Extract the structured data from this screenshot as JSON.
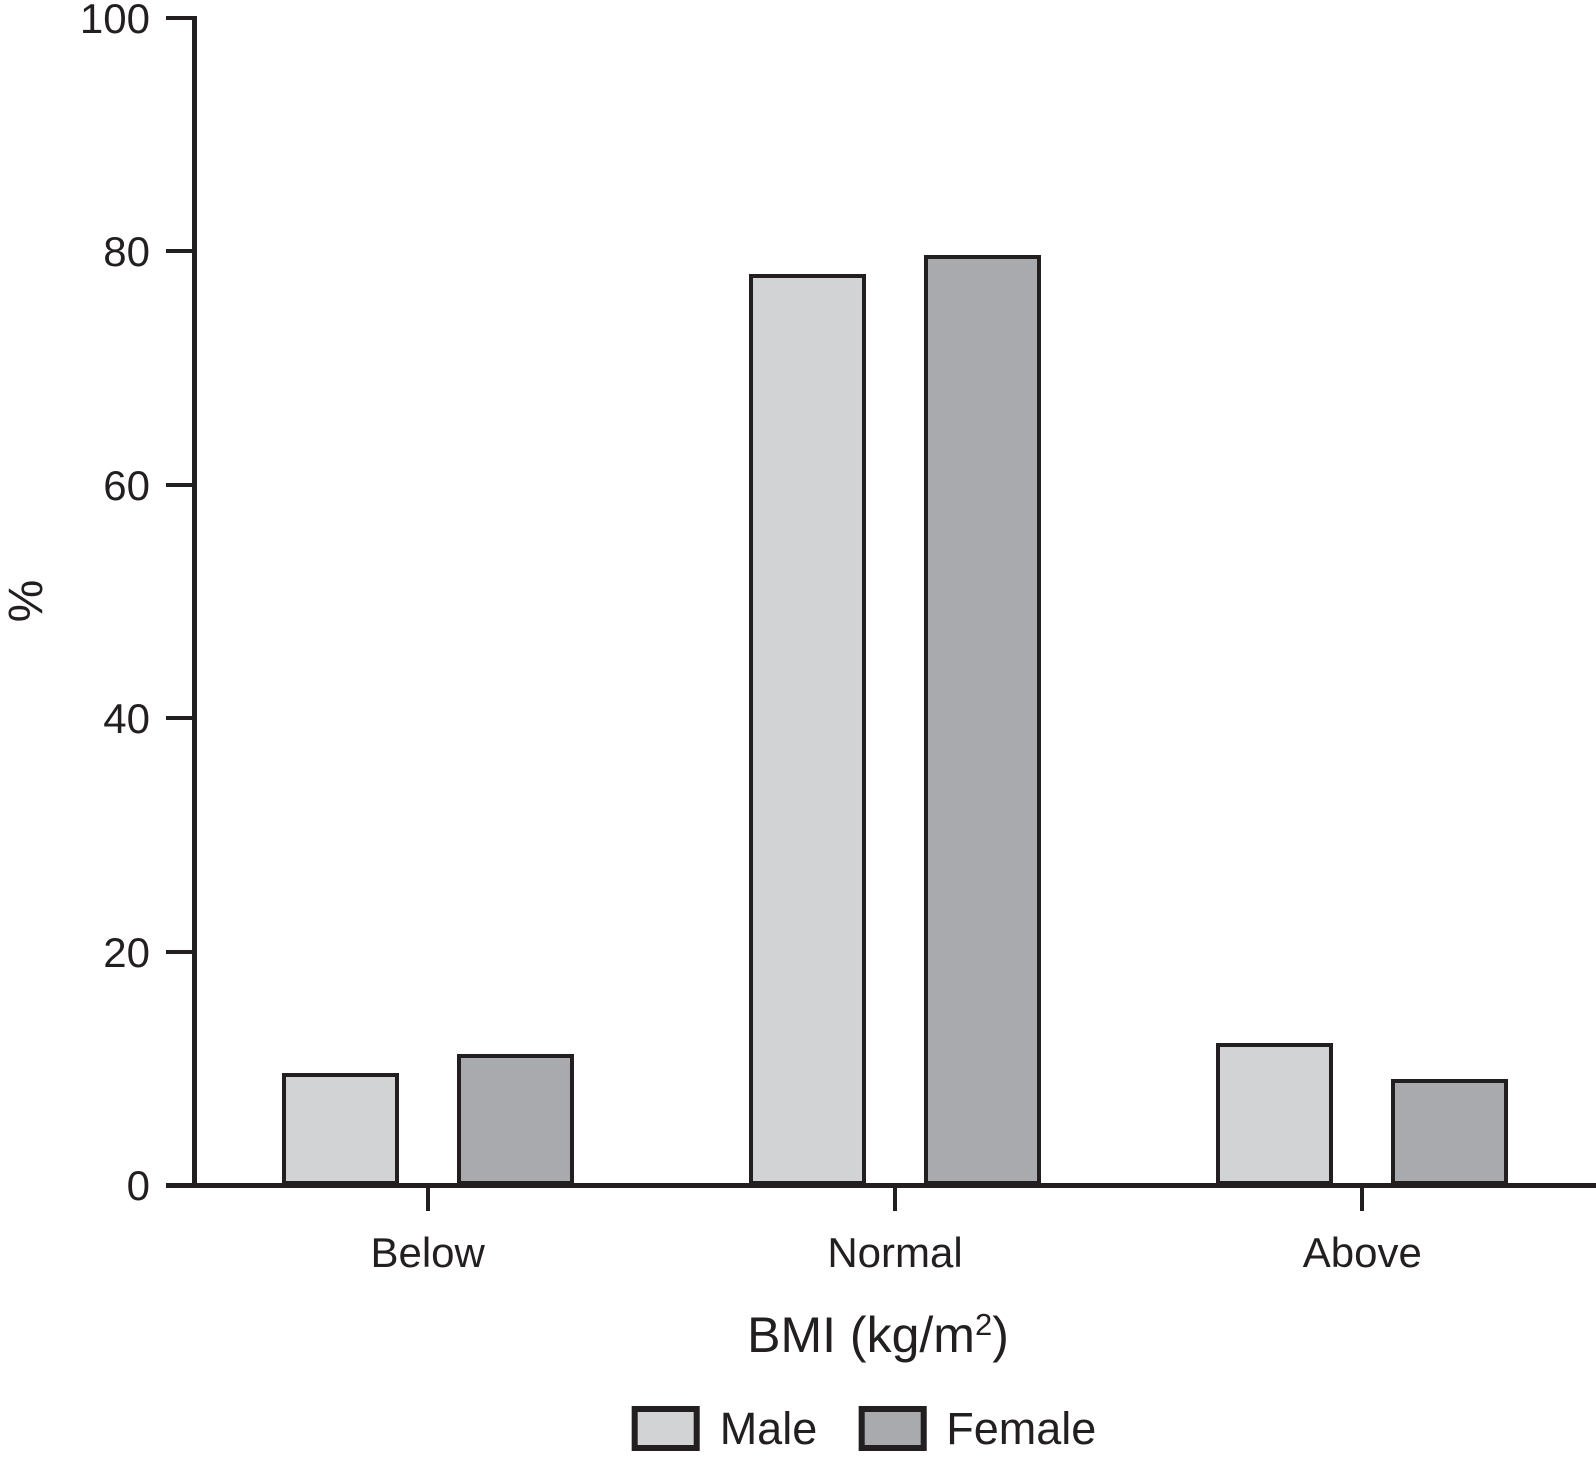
{
  "chart_data": {
    "type": "bar",
    "title": "",
    "categories": [
      "Below",
      "Normal",
      "Above"
    ],
    "series": [
      {
        "name": "Male",
        "color": "#d1d3d4",
        "values": [
          9.6,
          78.1,
          12.2
        ]
      },
      {
        "name": "Female",
        "color": "#a8aaad",
        "values": [
          11.2,
          79.7,
          9.1
        ]
      }
    ],
    "ylabel": "%",
    "xlabel": "BMI (kg/m2)",
    "xlabel_parts": {
      "base": "BMI (kg/m",
      "superscript": "2",
      "suffix": ")"
    },
    "ylim": [
      0,
      100
    ],
    "yticks": [
      0,
      20,
      40,
      60,
      80,
      100
    ],
    "grid": false,
    "legend_position": "bottom",
    "axis_color": "#231f20",
    "background": "#ffffff"
  }
}
